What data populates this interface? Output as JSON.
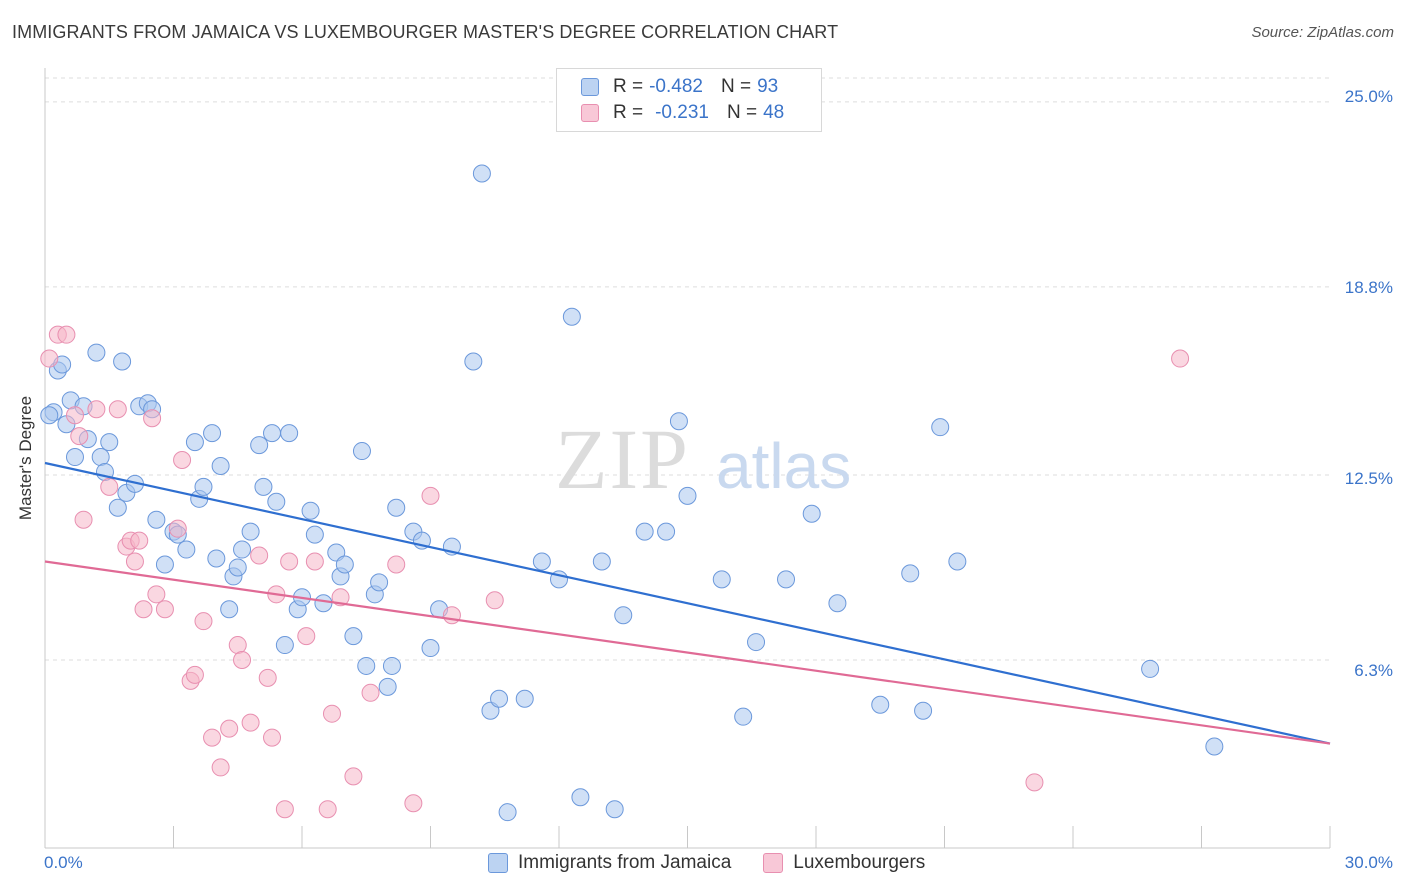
{
  "header": {
    "title": "IMMIGRANTS FROM JAMAICA VS LUXEMBOURGER MASTER'S DEGREE CORRELATION CHART",
    "source": "Source: ZipAtlas.com"
  },
  "watermark": {
    "zip": "ZIP",
    "atlas": "atlas"
  },
  "legend": {
    "rows": [
      {
        "r_label": "R =",
        "r_value": "-0.482",
        "n_label": "N =",
        "n_value": "93"
      },
      {
        "r_label": "R =",
        "r_value": "-0.231",
        "n_label": "N =",
        "n_value": "48"
      }
    ]
  },
  "colors": {
    "blue": "#3b74c9",
    "blue_fill": "#a9c6ef",
    "blue_line": "#2f6fd0",
    "pink": "#e87aa0",
    "pink_fill": "#f5b6c9",
    "pink_line": "#e06a95",
    "grid": "#dddddd"
  },
  "chart_data": {
    "type": "scatter",
    "title": "IMMIGRANTS FROM JAMAICA VS LUXEMBOURGER MASTER'S DEGREE CORRELATION CHART",
    "xlabel": "",
    "ylabel": "Master's Degree",
    "xlim": [
      0,
      30
    ],
    "ylim": [
      0,
      25.8
    ],
    "x_tick_labels": [
      "0.0%",
      "30.0%"
    ],
    "y_ticks": [
      6.3,
      12.5,
      18.8,
      25.0
    ],
    "y_tick_labels": [
      "6.3%",
      "12.5%",
      "18.8%",
      "25.0%"
    ],
    "grid": true,
    "legend_position": "top-center",
    "series": [
      {
        "name": "Immigrants from Jamaica",
        "color": "#3b74c9",
        "trend": {
          "x": [
            0,
            30
          ],
          "y": [
            12.9,
            3.5
          ]
        },
        "points": [
          [
            0.2,
            14.6
          ],
          [
            0.3,
            16.0
          ],
          [
            0.4,
            16.2
          ],
          [
            0.5,
            14.2
          ],
          [
            0.6,
            15.0
          ],
          [
            0.7,
            13.1
          ],
          [
            0.9,
            14.8
          ],
          [
            1.0,
            13.7
          ],
          [
            1.2,
            16.6
          ],
          [
            1.3,
            13.1
          ],
          [
            1.4,
            12.6
          ],
          [
            1.5,
            13.6
          ],
          [
            1.7,
            11.4
          ],
          [
            1.8,
            16.3
          ],
          [
            1.9,
            11.9
          ],
          [
            2.1,
            12.2
          ],
          [
            2.2,
            14.8
          ],
          [
            2.4,
            14.9
          ],
          [
            2.5,
            14.7
          ],
          [
            2.6,
            11.0
          ],
          [
            2.8,
            9.5
          ],
          [
            3.0,
            10.6
          ],
          [
            3.1,
            10.5
          ],
          [
            3.3,
            10.0
          ],
          [
            3.5,
            13.6
          ],
          [
            3.6,
            11.7
          ],
          [
            3.7,
            12.1
          ],
          [
            3.9,
            13.9
          ],
          [
            4.0,
            9.7
          ],
          [
            4.1,
            12.8
          ],
          [
            4.3,
            8.0
          ],
          [
            4.4,
            9.1
          ],
          [
            4.5,
            9.4
          ],
          [
            4.6,
            10.0
          ],
          [
            4.8,
            10.6
          ],
          [
            5.0,
            13.5
          ],
          [
            5.1,
            12.1
          ],
          [
            5.3,
            13.9
          ],
          [
            5.4,
            11.6
          ],
          [
            5.6,
            6.8
          ],
          [
            5.7,
            13.9
          ],
          [
            5.9,
            8.0
          ],
          [
            6.0,
            8.4
          ],
          [
            6.2,
            11.3
          ],
          [
            6.3,
            10.5
          ],
          [
            6.5,
            8.2
          ],
          [
            6.8,
            9.9
          ],
          [
            6.9,
            9.1
          ],
          [
            7.0,
            9.5
          ],
          [
            7.2,
            7.1
          ],
          [
            7.4,
            13.3
          ],
          [
            7.5,
            6.1
          ],
          [
            7.7,
            8.5
          ],
          [
            7.8,
            8.9
          ],
          [
            8.0,
            5.4
          ],
          [
            8.1,
            6.1
          ],
          [
            8.2,
            11.4
          ],
          [
            8.6,
            10.6
          ],
          [
            8.8,
            10.3
          ],
          [
            9.0,
            6.7
          ],
          [
            9.2,
            8.0
          ],
          [
            9.5,
            10.1
          ],
          [
            10.0,
            16.3
          ],
          [
            10.2,
            22.6
          ],
          [
            10.4,
            4.6
          ],
          [
            10.6,
            5.0
          ],
          [
            10.8,
            1.2
          ],
          [
            11.2,
            5.0
          ],
          [
            11.6,
            9.6
          ],
          [
            12.0,
            9.0
          ],
          [
            12.3,
            17.8
          ],
          [
            12.5,
            1.7
          ],
          [
            13.0,
            9.6
          ],
          [
            13.3,
            1.3
          ],
          [
            13.5,
            7.8
          ],
          [
            14.0,
            10.6
          ],
          [
            14.5,
            10.6
          ],
          [
            14.8,
            14.3
          ],
          [
            15.0,
            11.8
          ],
          [
            15.8,
            9.0
          ],
          [
            16.3,
            4.4
          ],
          [
            16.6,
            6.9
          ],
          [
            17.3,
            9.0
          ],
          [
            17.9,
            11.2
          ],
          [
            18.5,
            8.2
          ],
          [
            19.5,
            4.8
          ],
          [
            20.2,
            9.2
          ],
          [
            20.5,
            4.6
          ],
          [
            20.9,
            14.1
          ],
          [
            21.3,
            9.6
          ],
          [
            25.8,
            6.0
          ],
          [
            27.3,
            3.4
          ],
          [
            0.1,
            14.5
          ]
        ]
      },
      {
        "name": "Luxembourgers",
        "color": "#e87aa0",
        "trend": {
          "x": [
            0,
            30
          ],
          "y": [
            9.6,
            3.5
          ]
        },
        "points": [
          [
            0.1,
            16.4
          ],
          [
            0.3,
            17.2
          ],
          [
            0.5,
            17.2
          ],
          [
            0.7,
            14.5
          ],
          [
            0.8,
            13.8
          ],
          [
            0.9,
            11.0
          ],
          [
            1.2,
            14.7
          ],
          [
            1.5,
            12.1
          ],
          [
            1.7,
            14.7
          ],
          [
            1.9,
            10.1
          ],
          [
            2.0,
            10.3
          ],
          [
            2.1,
            9.6
          ],
          [
            2.2,
            10.3
          ],
          [
            2.3,
            8.0
          ],
          [
            2.5,
            14.4
          ],
          [
            2.6,
            8.5
          ],
          [
            2.8,
            8.0
          ],
          [
            3.1,
            10.7
          ],
          [
            3.2,
            13.0
          ],
          [
            3.4,
            5.6
          ],
          [
            3.5,
            5.8
          ],
          [
            3.7,
            7.6
          ],
          [
            3.9,
            3.7
          ],
          [
            4.1,
            2.7
          ],
          [
            4.3,
            4.0
          ],
          [
            4.5,
            6.8
          ],
          [
            4.6,
            6.3
          ],
          [
            4.8,
            4.2
          ],
          [
            5.0,
            9.8
          ],
          [
            5.2,
            5.7
          ],
          [
            5.3,
            3.7
          ],
          [
            5.4,
            8.5
          ],
          [
            5.6,
            1.3
          ],
          [
            5.7,
            9.6
          ],
          [
            6.1,
            7.1
          ],
          [
            6.3,
            9.6
          ],
          [
            6.6,
            1.3
          ],
          [
            6.7,
            4.5
          ],
          [
            6.9,
            8.4
          ],
          [
            7.2,
            2.4
          ],
          [
            7.6,
            5.2
          ],
          [
            8.2,
            9.5
          ],
          [
            8.6,
            1.5
          ],
          [
            9.0,
            11.8
          ],
          [
            9.5,
            7.8
          ],
          [
            10.5,
            8.3
          ],
          [
            23.1,
            2.2
          ],
          [
            26.5,
            16.4
          ]
        ]
      }
    ]
  },
  "axes": {
    "ylabel": "Master's Degree",
    "x_left": "0.0%",
    "x_right": "30.0%",
    "y_ticks": [
      "25.0%",
      "18.8%",
      "12.5%",
      "6.3%"
    ]
  },
  "bottom_legend": {
    "items": [
      "Immigrants from Jamaica",
      "Luxembourgers"
    ]
  }
}
